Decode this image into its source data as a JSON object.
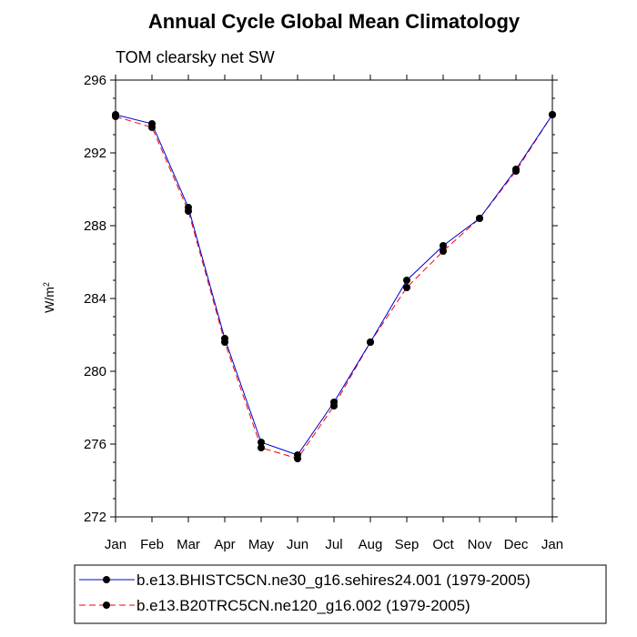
{
  "chart_data": {
    "type": "line",
    "title": "Annual Cycle Global Mean Climatology",
    "subtitle": "TOM clearsky net SW",
    "xlabel": "",
    "ylabel": "W/m",
    "ylabel_sup": "2",
    "categories": [
      "Jan",
      "Feb",
      "Mar",
      "Apr",
      "May",
      "Jun",
      "Jul",
      "Aug",
      "Sep",
      "Oct",
      "Nov",
      "Dec",
      "Jan"
    ],
    "ylim": [
      272,
      296
    ],
    "yticks": [
      "272",
      "276",
      "280",
      "284",
      "288",
      "292",
      "296"
    ],
    "grid": false,
    "legend_position": "bottom",
    "series": [
      {
        "name": "b.e13.BHISTC5CN.ne30_g16.sehires24.001 (1979-2005)",
        "color": "#0000cc",
        "dash": "solid",
        "values": [
          294.1,
          293.6,
          289.0,
          281.8,
          276.1,
          275.4,
          278.3,
          281.6,
          285.0,
          286.9,
          288.4,
          291.1,
          294.1
        ]
      },
      {
        "name": "b.e13.B20TRC5CN.ne120_g16.002 (1979-2005)",
        "color": "#ff0000",
        "dash": "dashed",
        "values": [
          294.0,
          293.4,
          288.8,
          281.6,
          275.8,
          275.2,
          278.1,
          281.6,
          284.6,
          286.6,
          288.4,
          291.0,
          294.1
        ]
      }
    ]
  }
}
